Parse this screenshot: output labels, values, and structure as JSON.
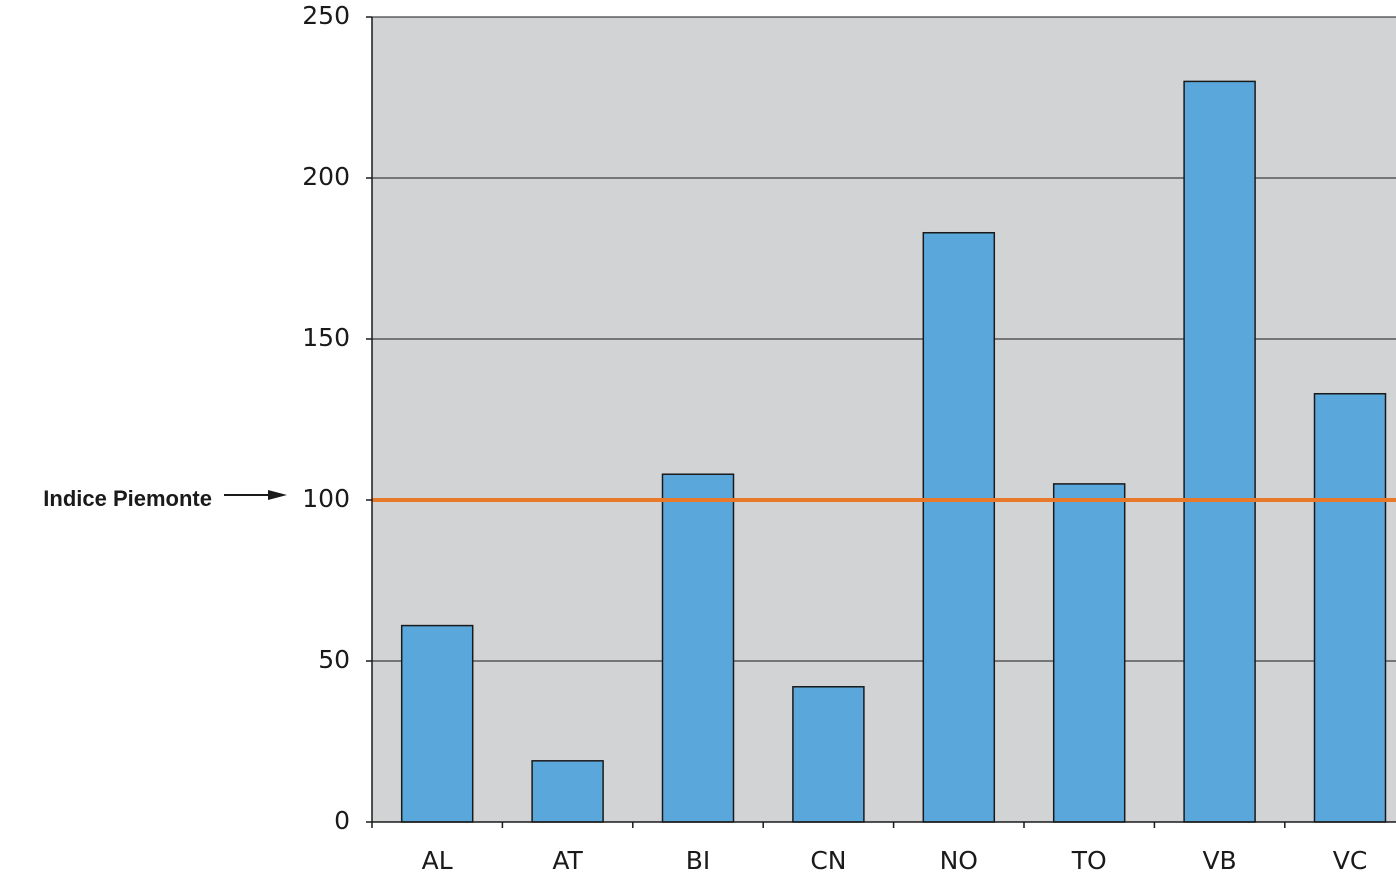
{
  "chart_data": {
    "type": "bar",
    "categories": [
      "AL",
      "AT",
      "BI",
      "CN",
      "NO",
      "TO",
      "VB",
      "VC"
    ],
    "values": [
      61,
      19,
      108,
      42,
      183,
      105,
      230,
      133
    ],
    "ylim": [
      0,
      250
    ],
    "yticks": [
      0,
      50,
      100,
      150,
      200,
      250
    ],
    "y_tick_labels": [
      "0",
      "50",
      "100",
      "150",
      "200",
      "250"
    ],
    "grid": true,
    "reference_line": {
      "value": 100,
      "label": "Indice Piemonte",
      "color": "#e8782a"
    },
    "colors": {
      "bar": "#5aa7dc",
      "plot_background": "#d1d3d5",
      "gridline": "#1a1a1a"
    }
  }
}
